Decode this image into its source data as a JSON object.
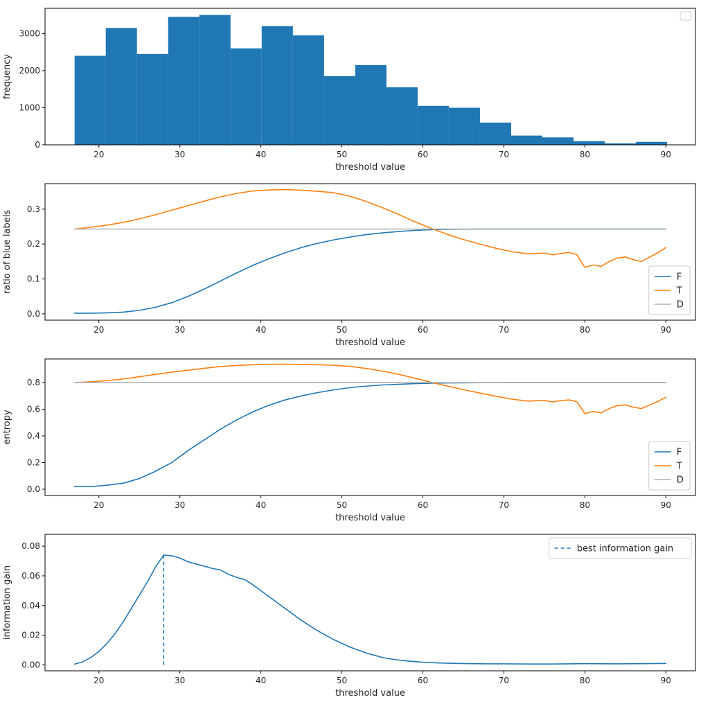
{
  "figure": {
    "background": "#ffffff",
    "axis_color": "#000000",
    "colors": {
      "blue": "#1f77b4",
      "orange": "#ff7f0e",
      "gray": "#b0b0b0"
    }
  },
  "chart_data": [
    {
      "name": "frequency-histogram",
      "type": "bar",
      "title": "",
      "xlabel": "threshold value",
      "ylabel": "frequency",
      "xlim": [
        13.35,
        93.65
      ],
      "ylim": [
        0,
        3680
      ],
      "xticks": [
        20,
        30,
        40,
        50,
        60,
        70,
        80,
        90
      ],
      "xtick_labels": [
        "20",
        "30",
        "40",
        "50",
        "60",
        "70",
        "80",
        "90"
      ],
      "yticks": [
        0,
        1000,
        2000,
        3000
      ],
      "ytick_labels": [
        "0",
        "1000",
        "2000",
        "3000"
      ],
      "grid": false,
      "bars": {
        "color": "#1f77b4",
        "bin_start": 17,
        "bin_width": 3.85,
        "counts": [
          2400,
          3150,
          2450,
          3450,
          3500,
          2600,
          3200,
          2950,
          1850,
          2150,
          1550,
          1050,
          1000,
          600,
          250,
          200,
          100,
          40,
          80
        ]
      },
      "legend": {
        "position": "upper-right",
        "entries": []
      }
    },
    {
      "name": "ratio-of-blue-labels",
      "type": "line",
      "title": "",
      "xlabel": "threshold value",
      "ylabel": "ratio of blue labels",
      "xlim": [
        13.35,
        93.65
      ],
      "ylim": [
        -0.018,
        0.373
      ],
      "xticks": [
        20,
        30,
        40,
        50,
        60,
        70,
        80,
        90
      ],
      "xtick_labels": [
        "20",
        "30",
        "40",
        "50",
        "60",
        "70",
        "80",
        "90"
      ],
      "yticks": [
        0.0,
        0.1,
        0.2,
        0.3
      ],
      "ytick_labels": [
        "0.0",
        "0.1",
        "0.2",
        "0.3"
      ],
      "grid": false,
      "series": [
        {
          "name": "F",
          "color": "#1f77b4",
          "dash": false,
          "x": [
            17,
            19,
            21,
            23,
            25,
            27,
            29,
            31,
            33,
            35,
            37,
            39,
            41,
            43,
            45,
            47,
            49,
            51,
            53,
            55,
            57,
            59,
            61,
            63,
            65,
            67,
            70,
            75,
            80,
            85,
            90
          ],
          "y": [
            0.002,
            0.002,
            0.003,
            0.005,
            0.01,
            0.019,
            0.032,
            0.05,
            0.071,
            0.094,
            0.117,
            0.139,
            0.158,
            0.175,
            0.19,
            0.202,
            0.212,
            0.22,
            0.227,
            0.232,
            0.236,
            0.239,
            0.241,
            0.242,
            0.2425,
            0.243,
            0.243,
            0.243,
            0.243,
            0.243,
            0.243
          ]
        },
        {
          "name": "T",
          "color": "#ff7f0e",
          "dash": false,
          "x": [
            17,
            19,
            21,
            23,
            25,
            27,
            29,
            31,
            33,
            35,
            37,
            39,
            41,
            43,
            45,
            47,
            49,
            51,
            53,
            55,
            57,
            59,
            61,
            63,
            65,
            67,
            69,
            71,
            73,
            75,
            76,
            77,
            78,
            79,
            80,
            81,
            82,
            83,
            84,
            85,
            86,
            87,
            88,
            89,
            90
          ],
          "y": [
            0.243,
            0.248,
            0.254,
            0.262,
            0.272,
            0.284,
            0.297,
            0.31,
            0.323,
            0.335,
            0.345,
            0.352,
            0.355,
            0.356,
            0.354,
            0.351,
            0.347,
            0.337,
            0.322,
            0.304,
            0.285,
            0.264,
            0.245,
            0.228,
            0.213,
            0.2,
            0.188,
            0.178,
            0.172,
            0.174,
            0.169,
            0.173,
            0.176,
            0.17,
            0.133,
            0.14,
            0.136,
            0.15,
            0.16,
            0.163,
            0.155,
            0.15,
            0.163,
            0.175,
            0.19
          ]
        },
        {
          "name": "D",
          "color": "#b0b0b0",
          "dash": false,
          "x": [
            17,
            90
          ],
          "y": [
            0.243,
            0.243
          ]
        }
      ],
      "legend": {
        "position": "lower-right",
        "entries": [
          {
            "label": "F",
            "color": "#1f77b4",
            "dash": false
          },
          {
            "label": "T",
            "color": "#ff7f0e",
            "dash": false
          },
          {
            "label": "D",
            "color": "#b0b0b0",
            "dash": false
          }
        ]
      }
    },
    {
      "name": "entropy",
      "type": "line",
      "title": "",
      "xlabel": "threshold value",
      "ylabel": "entropy",
      "xlim": [
        13.35,
        93.65
      ],
      "ylim": [
        -0.047,
        0.977
      ],
      "xticks": [
        20,
        30,
        40,
        50,
        60,
        70,
        80,
        90
      ],
      "xtick_labels": [
        "20",
        "30",
        "40",
        "50",
        "60",
        "70",
        "80",
        "90"
      ],
      "yticks": [
        0.0,
        0.2,
        0.4,
        0.6,
        0.8
      ],
      "ytick_labels": [
        "0.0",
        "0.2",
        "0.4",
        "0.6",
        "0.8"
      ],
      "grid": false,
      "series": [
        {
          "name": "F",
          "color": "#1f77b4",
          "dash": false,
          "x": [
            17,
            19,
            21,
            23,
            25,
            27,
            29,
            31,
            33,
            35,
            37,
            39,
            41,
            43,
            45,
            47,
            49,
            51,
            53,
            55,
            57,
            59,
            61,
            63,
            65,
            67,
            70,
            75,
            80,
            85,
            90
          ],
          "y": [
            0.02,
            0.02,
            0.03,
            0.045,
            0.08,
            0.135,
            0.2,
            0.29,
            0.37,
            0.45,
            0.52,
            0.58,
            0.63,
            0.67,
            0.7,
            0.725,
            0.745,
            0.762,
            0.773,
            0.782,
            0.787,
            0.792,
            0.795,
            0.797,
            0.798,
            0.799,
            0.8,
            0.8,
            0.8,
            0.8,
            0.8
          ]
        },
        {
          "name": "T",
          "color": "#ff7f0e",
          "dash": false,
          "x": [
            17,
            19,
            21,
            23,
            25,
            27,
            29,
            31,
            33,
            35,
            37,
            39,
            41,
            43,
            45,
            47,
            49,
            51,
            53,
            55,
            57,
            59,
            61,
            63,
            65,
            67,
            69,
            71,
            73,
            75,
            76,
            77,
            78,
            79,
            80,
            81,
            82,
            83,
            84,
            85,
            86,
            87,
            88,
            89,
            90
          ],
          "y": [
            0.799,
            0.806,
            0.815,
            0.827,
            0.844,
            0.861,
            0.878,
            0.893,
            0.907,
            0.92,
            0.928,
            0.934,
            0.937,
            0.938,
            0.936,
            0.934,
            0.93,
            0.921,
            0.906,
            0.886,
            0.862,
            0.833,
            0.802,
            0.774,
            0.747,
            0.722,
            0.698,
            0.675,
            0.661,
            0.666,
            0.655,
            0.664,
            0.67,
            0.657,
            0.567,
            0.583,
            0.573,
            0.605,
            0.627,
            0.633,
            0.615,
            0.605,
            0.633,
            0.658,
            0.69
          ]
        },
        {
          "name": "D",
          "color": "#b0b0b0",
          "dash": false,
          "x": [
            17,
            90
          ],
          "y": [
            0.8,
            0.8
          ]
        }
      ],
      "legend": {
        "position": "lower-right",
        "entries": [
          {
            "label": "F",
            "color": "#1f77b4",
            "dash": false
          },
          {
            "label": "T",
            "color": "#ff7f0e",
            "dash": false
          },
          {
            "label": "D",
            "color": "#b0b0b0",
            "dash": false
          }
        ]
      }
    },
    {
      "name": "information-gain",
      "type": "line",
      "title": "",
      "xlabel": "threshold value",
      "ylabel": "information gain",
      "xlim": [
        13.35,
        93.65
      ],
      "ylim": [
        -0.004,
        0.088
      ],
      "xticks": [
        20,
        30,
        40,
        50,
        60,
        70,
        80,
        90
      ],
      "xtick_labels": [
        "20",
        "30",
        "40",
        "50",
        "60",
        "70",
        "80",
        "90"
      ],
      "yticks": [
        0.0,
        0.02,
        0.04,
        0.06,
        0.08
      ],
      "ytick_labels": [
        "0.00",
        "0.02",
        "0.04",
        "0.06",
        "0.08"
      ],
      "grid": false,
      "series": [
        {
          "name": "information-gain",
          "color": "#1f77b4",
          "dash": false,
          "x": [
            17,
            18,
            19,
            20,
            21,
            22,
            23,
            24,
            25,
            26,
            27,
            28,
            29,
            30,
            31,
            32,
            33,
            34,
            35,
            36,
            37,
            38,
            39,
            40,
            41,
            42,
            43,
            44,
            45,
            46,
            47,
            48,
            49,
            50,
            51,
            52,
            53,
            54,
            55,
            56,
            57,
            58,
            59,
            60,
            62,
            64,
            66,
            68,
            70,
            73,
            76,
            80,
            84,
            87,
            90
          ],
          "y": [
            0.0005,
            0.002,
            0.005,
            0.009,
            0.0145,
            0.021,
            0.029,
            0.038,
            0.047,
            0.056,
            0.066,
            0.074,
            0.0735,
            0.072,
            0.0695,
            0.068,
            0.0665,
            0.065,
            0.064,
            0.061,
            0.059,
            0.0575,
            0.054,
            0.05,
            0.046,
            0.042,
            0.038,
            0.034,
            0.03,
            0.0265,
            0.023,
            0.02,
            0.017,
            0.0145,
            0.012,
            0.01,
            0.008,
            0.0065,
            0.005,
            0.004,
            0.0033,
            0.0027,
            0.0022,
            0.0018,
            0.0013,
            0.001,
            0.0008,
            0.0007,
            0.0007,
            0.0006,
            0.0006,
            0.0008,
            0.0007,
            0.0008,
            0.001
          ]
        }
      ],
      "vlines": [
        {
          "x": 28,
          "y0": 0.0,
          "y1": 0.0745,
          "color": "#1f77b4",
          "dash": true,
          "label": "best information gain"
        }
      ],
      "legend": {
        "position": "upper-right",
        "entries": [
          {
            "label": "best information gain",
            "color": "#1f77b4",
            "dash": true
          }
        ]
      }
    }
  ]
}
